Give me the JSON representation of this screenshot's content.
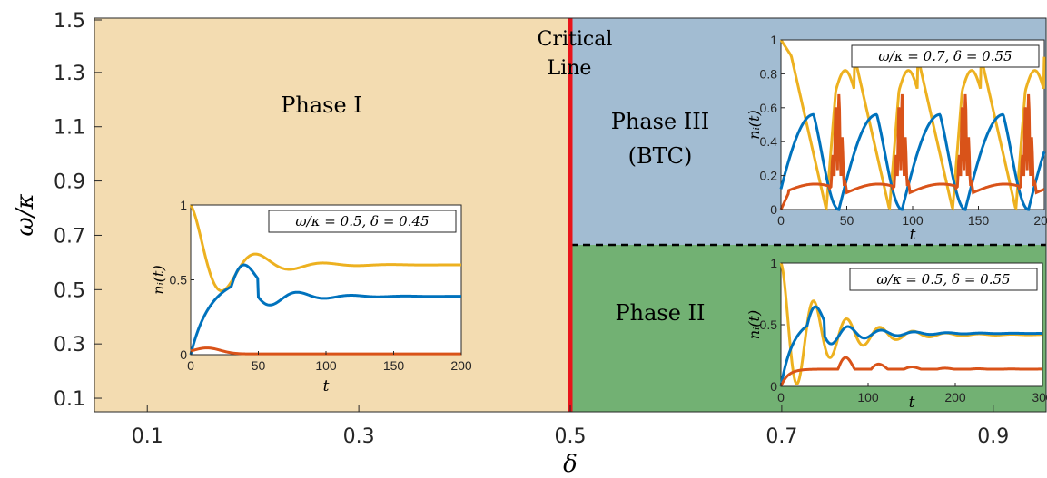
{
  "chart_data": {
    "type": "heatmap",
    "xlabel": "δ",
    "ylabel": "ω/κ",
    "xlim": [
      0.05,
      0.95
    ],
    "ylim": [
      0.05,
      1.5
    ],
    "xticks": [
      0.1,
      0.3,
      0.5,
      0.7,
      0.9
    ],
    "xtick_labels": [
      "0.1",
      "0.3",
      "0.5",
      "0.7",
      "0.9"
    ],
    "yticks": [
      0.1,
      0.3,
      0.5,
      0.7,
      0.9,
      1.1,
      1.3,
      1.5
    ],
    "ytick_labels": [
      "0.1",
      "0.3",
      "0.5",
      "0.7",
      "0.9",
      "1.1",
      "1.3",
      "1.5"
    ],
    "regions": [
      {
        "label": "Phase I",
        "x": [
          0.05,
          0.5
        ],
        "y": [
          0.05,
          1.5
        ],
        "color": "#f3dcb1"
      },
      {
        "label": "Phase III",
        "sublabel": "(BTC)",
        "x": [
          0.5,
          0.95
        ],
        "y": [
          0.66,
          1.5
        ],
        "color": "#a2bcd2"
      },
      {
        "label": "Phase II",
        "x": [
          0.5,
          0.95
        ],
        "y": [
          0.05,
          0.66
        ],
        "color": "#72b173"
      }
    ],
    "critical_line": {
      "label_line1": "Critical",
      "label_line2": "Line",
      "x": 0.5,
      "color": "#e8141a"
    },
    "boundary": {
      "y": 0.66,
      "x": [
        0.5,
        0.95
      ],
      "style": "dashed"
    },
    "insets": [
      {
        "id": "inset-phase1",
        "legend": "ω/κ = 0.5, δ = 0.45",
        "xlabel": "t",
        "ylabel": "nᵢ(t)",
        "xlim": [
          0,
          200
        ],
        "ylim": [
          0,
          1
        ],
        "xticks": [
          0,
          50,
          100,
          150,
          200
        ],
        "xtick_labels": [
          "0",
          "50",
          "100",
          "150",
          "200"
        ],
        "yticks": [
          0,
          0.5,
          1
        ],
        "ytick_labels": [
          "0",
          "0.5",
          "1"
        ],
        "series": [
          {
            "color": "#edb120",
            "type": "damped",
            "start": 1.0,
            "base": 0.6,
            "decay": 0.035,
            "amp": 0.4,
            "period": 50,
            "phase": 0
          },
          {
            "color": "#0072bd",
            "type": "damped_rise",
            "end": 0.39,
            "decay": 0.035,
            "period": 40
          },
          {
            "color": "#d95319",
            "type": "small",
            "level": 0.0
          }
        ]
      },
      {
        "id": "inset-phase3",
        "legend": "ω/κ = 0.7, δ = 0.55",
        "xlabel": "t",
        "ylabel": "nᵢ(t)",
        "xlim": [
          0,
          200
        ],
        "ylim": [
          0,
          1
        ],
        "xticks": [
          0,
          50,
          100,
          150,
          200
        ],
        "xtick_labels": [
          "0",
          "50",
          "100",
          "150",
          "200"
        ],
        "yticks": [
          0,
          0.2,
          0.4,
          0.6,
          0.8,
          1
        ],
        "ytick_labels": [
          "0",
          "0.2",
          "0.4",
          "0.6",
          "0.8",
          "1"
        ],
        "series": [
          {
            "color": "#edb120",
            "type": "periodic_yellow",
            "period": 48
          },
          {
            "color": "#0072bd",
            "type": "periodic_blue",
            "period": 48
          },
          {
            "color": "#d95319",
            "type": "periodic_red",
            "period": 48
          }
        ]
      },
      {
        "id": "inset-phase2",
        "legend": "ω/κ = 0.5, δ = 0.55",
        "xlabel": "t",
        "ylabel": "nᵢ(t)",
        "xlim": [
          0,
          300
        ],
        "ylim": [
          0,
          1
        ],
        "xticks": [
          0,
          100,
          200,
          300
        ],
        "xtick_labels": [
          "0",
          "100",
          "200",
          "300"
        ],
        "yticks": [
          0,
          0.5,
          1
        ],
        "ytick_labels": [
          "0",
          "0.5",
          "1"
        ],
        "series": [
          {
            "color": "#edb120",
            "type": "damped",
            "start": 1.0,
            "base": 0.42,
            "decay": 0.02,
            "amp": 0.25,
            "period": 38,
            "phase": 0
          },
          {
            "color": "#0072bd",
            "type": "damped_rise",
            "end": 0.43,
            "decay": 0.02,
            "period": 38
          },
          {
            "color": "#d95319",
            "type": "damped_red",
            "end": 0.14,
            "period": 38
          }
        ]
      }
    ]
  }
}
